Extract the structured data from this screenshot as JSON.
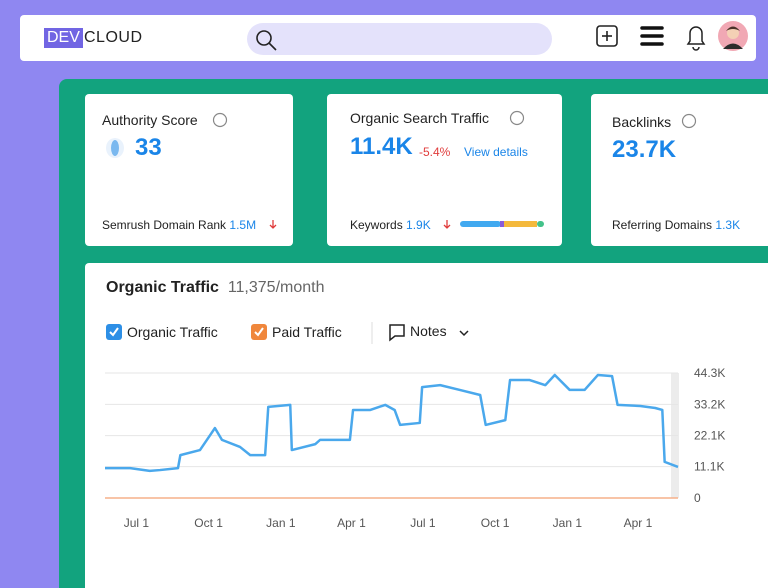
{
  "header": {
    "logo_prefix": "DEV",
    "logo_suffix": "CLOUD"
  },
  "cards": [
    {
      "title": "Authority Score",
      "value": "33",
      "footer_label": "Semrush Domain Rank",
      "footer_value": "1.5M"
    },
    {
      "title": "Organic Search Traffic",
      "value": "11.4K",
      "change": "-5.4%",
      "link": "View details",
      "footer_label": "Keywords",
      "footer_value": "1.9K"
    },
    {
      "title": "Backlinks",
      "value": "23.7K",
      "footer_label": "Referring Domains",
      "footer_value": "1.3K"
    }
  ],
  "panel": {
    "title": "Organic Traffic",
    "subtitle": "11,375/month",
    "notes": "Notes"
  },
  "chart_data": {
    "type": "line",
    "series": [
      {
        "name": "Organic Traffic",
        "color": "#4aa8ec",
        "x": [
          -40,
          -8,
          17,
          30,
          53,
          56,
          81,
          94,
          100,
          109,
          132,
          145,
          164,
          168,
          196,
          198,
          228,
          234,
          272,
          276,
          298,
          317,
          329,
          336,
          361,
          364,
          387,
          412,
          438,
          445,
          470,
          476,
          501,
          521,
          533,
          552,
          571,
          588,
          606,
          613,
          642,
          661,
          670,
          673,
          690
        ],
        "values": [
          10600,
          10600,
          9600,
          9900,
          10600,
          15200,
          17000,
          22300,
          24800,
          20600,
          18100,
          15200,
          15200,
          32300,
          33000,
          17000,
          19100,
          20600,
          20600,
          31200,
          31200,
          33000,
          31200,
          25900,
          26600,
          39300,
          40000,
          38300,
          36500,
          25900,
          27600,
          41800,
          41800,
          40000,
          43600,
          38300,
          38300,
          43600,
          43200,
          33000,
          32600,
          31900,
          31200,
          12800,
          11000
        ]
      },
      {
        "name": "Paid Traffic",
        "color": "#f6b08a",
        "x": [
          -40,
          690
        ],
        "values": [
          0,
          0
        ]
      }
    ],
    "xlim": [
      -40,
      690
    ],
    "xticks": [
      {
        "value": 0,
        "label": "Jul 1"
      },
      {
        "value": 92,
        "label": "Oct 1"
      },
      {
        "value": 184,
        "label": "Jan 1"
      },
      {
        "value": 274,
        "label": "Apr 1"
      },
      {
        "value": 365,
        "label": "Jul 1"
      },
      {
        "value": 457,
        "label": "Oct 1"
      },
      {
        "value": 549,
        "label": "Jan 1"
      },
      {
        "value": 639,
        "label": "Apr 1"
      }
    ],
    "ylim": [
      0,
      44300
    ],
    "yticks": [
      0,
      {
        "value": 11100,
        "label": "11.1K"
      },
      {
        "value": 22100,
        "label": "22.1K"
      },
      {
        "value": 33200,
        "label": "33.2K"
      },
      {
        "value": 44300,
        "label": "44.3K"
      }
    ],
    "grid": true
  }
}
